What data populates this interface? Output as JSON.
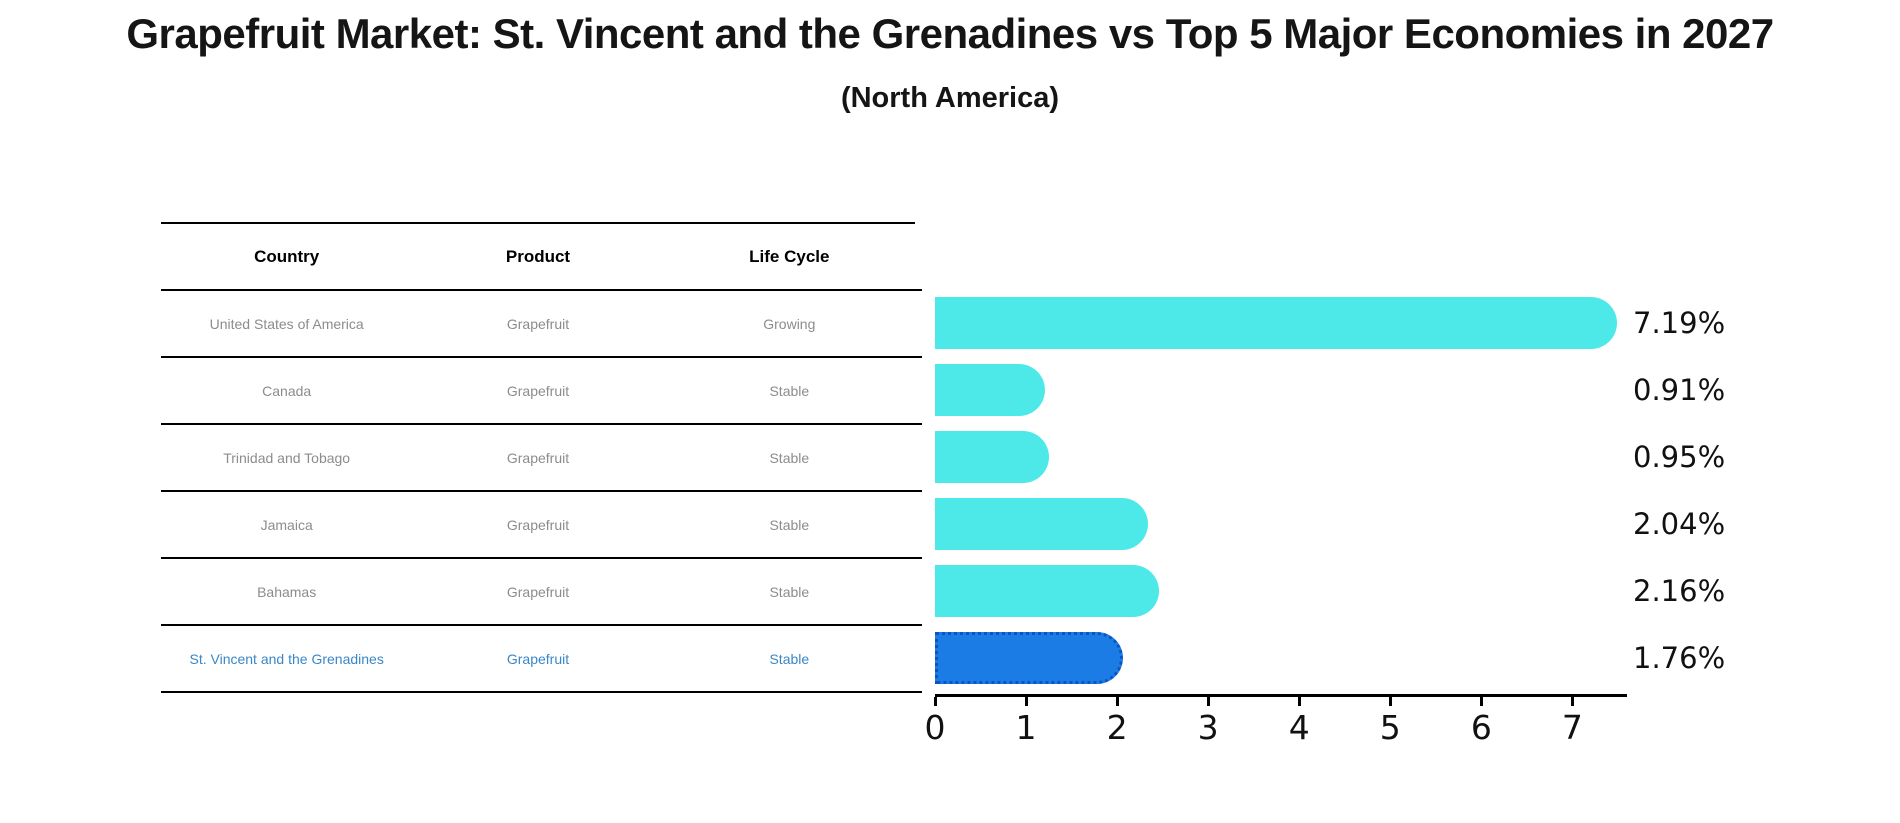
{
  "chart_data": {
    "type": "bar",
    "orientation": "horizontal",
    "title": "Grapefruit Market: St. Vincent and the Grenadines vs Top 5 Major Economies in 2027",
    "subtitle": "(North America)",
    "categories": [
      "United States of America",
      "Canada",
      "Trinidad and Tobago",
      "Jamaica",
      "Bahamas",
      "St. Vincent and the Grenadines"
    ],
    "values": [
      7.19,
      0.91,
      0.95,
      2.04,
      2.16,
      1.76
    ],
    "value_labels": [
      "7.19%",
      "0.91%",
      "0.95%",
      "2.04%",
      "2.16%",
      "1.76%"
    ],
    "xlabel": "",
    "ylabel": "",
    "xlim": [
      0,
      7.6
    ],
    "xticks": [
      "0",
      "1",
      "2",
      "3",
      "4",
      "5",
      "6",
      "7"
    ],
    "grid": false,
    "legend": false,
    "highlight_index": 5,
    "colors": {
      "bar": "#4DE9E9",
      "highlight_bar": "#1C7CE6",
      "highlight_text": "#3A87C8",
      "table_text": "#8C8C8C",
      "axis": "#000000"
    }
  },
  "table": {
    "columns": [
      "Country",
      "Product",
      "Life Cycle"
    ],
    "rows": [
      {
        "country": "United States of America",
        "product": "Grapefruit",
        "life_cycle": "Growing",
        "highlight": false
      },
      {
        "country": "Canada",
        "product": "Grapefruit",
        "life_cycle": "Stable",
        "highlight": false
      },
      {
        "country": "Trinidad and Tobago",
        "product": "Grapefruit",
        "life_cycle": "Stable",
        "highlight": false
      },
      {
        "country": "Jamaica",
        "product": "Grapefruit",
        "life_cycle": "Stable",
        "highlight": false
      },
      {
        "country": "Bahamas",
        "product": "Grapefruit",
        "life_cycle": "Stable",
        "highlight": false
      },
      {
        "country": "St. Vincent and the Grenadines",
        "product": "Grapefruit",
        "life_cycle": "Stable",
        "highlight": true
      }
    ]
  }
}
